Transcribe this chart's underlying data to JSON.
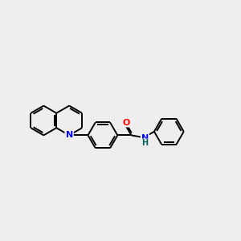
{
  "background_color": "#eeeeee",
  "bond_color": "#000000",
  "N_color": "#0000ff",
  "O_color": "#ff0000",
  "NH_color": "#006060",
  "linewidth": 1.4,
  "figsize": [
    3.0,
    3.0
  ],
  "dpi": 100,
  "xlim": [
    0,
    12
  ],
  "ylim": [
    2,
    9
  ]
}
